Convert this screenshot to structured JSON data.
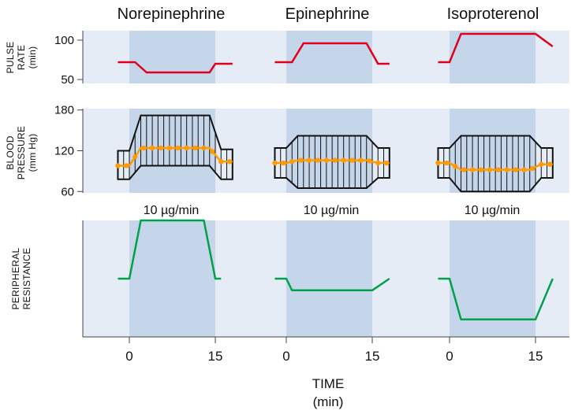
{
  "chart_data": {
    "type": "line",
    "drugs": [
      "Norepinephrine",
      "Epinephrine",
      "Isoproterenol"
    ],
    "dose_label": "10 µg/min",
    "x_axis": {
      "label": "TIME",
      "unit": "(min)",
      "ticks": [
        0,
        15
      ],
      "infusion_window": [
        0,
        15
      ],
      "range": [
        -3,
        20
      ]
    },
    "panels": [
      {
        "id": "pulse_rate",
        "ylabel": [
          "PULSE",
          "RATE",
          "(min)"
        ],
        "yticks": [
          50,
          100
        ],
        "ylim": [
          45,
          112
        ],
        "color": "#e0001b",
        "series": [
          {
            "drug": "Norepinephrine",
            "t": [
              -2,
              1,
              3,
              14,
              15,
              18
            ],
            "y": [
              72,
              72,
              59,
              59,
              70,
              70
            ]
          },
          {
            "drug": "Epinephrine",
            "t": [
              -2,
              1,
              3,
              14,
              16,
              18
            ],
            "y": [
              72,
              72,
              96,
              96,
              70,
              70
            ]
          },
          {
            "drug": "Isoproterenol",
            "t": [
              -2,
              0,
              2,
              13,
              15,
              18
            ],
            "y": [
              72,
              72,
              108,
              108,
              108,
              92
            ]
          }
        ]
      },
      {
        "id": "blood_pressure",
        "ylabel": [
          "BLOOD",
          "PRESSURE",
          "(mm Hg)"
        ],
        "yticks": [
          60,
          120,
          180
        ],
        "ylim": [
          58,
          182
        ],
        "mean_color": "#ff9a00",
        "series": [
          {
            "drug": "Norepinephrine",
            "t": [
              -2,
              0,
              2,
              14,
              16,
              18
            ],
            "systolic": [
              120,
              120,
              172,
              172,
              122,
              122
            ],
            "diastolic": [
              78,
              78,
              98,
              98,
              78,
              78
            ],
            "mean": [
              98,
              98,
              124,
              124,
              104,
              104
            ]
          },
          {
            "drug": "Epinephrine",
            "t": [
              -2,
              0,
              2,
              14,
              16,
              18
            ],
            "systolic": [
              124,
              124,
              142,
              142,
              124,
              124
            ],
            "diastolic": [
              80,
              80,
              65,
              65,
              80,
              80
            ],
            "mean": [
              102,
              102,
              106,
              106,
              102,
              102
            ]
          },
          {
            "drug": "Isoproterenol",
            "t": [
              -2,
              0,
              2,
              14,
              16,
              18
            ],
            "systolic": [
              124,
              124,
              142,
              142,
              124,
              124
            ],
            "diastolic": [
              80,
              80,
              60,
              60,
              80,
              80
            ],
            "mean": [
              102,
              102,
              92,
              92,
              100,
              100
            ]
          }
        ]
      },
      {
        "id": "peripheral_resistance",
        "ylabel": [
          "PERIPHERAL",
          "RESISTANCE"
        ],
        "yticks": [],
        "ylim": [
          0,
          100
        ],
        "color": "#00a14b",
        "series": [
          {
            "drug": "Norepinephrine",
            "t": [
              -2,
              0,
              2,
              13,
              15,
              16
            ],
            "y": [
              50,
              50,
              100,
              100,
              50,
              50
            ]
          },
          {
            "drug": "Epinephrine",
            "t": [
              -2,
              0,
              1,
              14,
              15,
              18
            ],
            "y": [
              50,
              50,
              40,
              40,
              40,
              50
            ]
          },
          {
            "drug": "Isoproterenol",
            "t": [
              -2,
              0,
              2,
              14,
              15,
              18
            ],
            "y": [
              50,
              50,
              15,
              15,
              15,
              50
            ]
          }
        ]
      }
    ]
  }
}
